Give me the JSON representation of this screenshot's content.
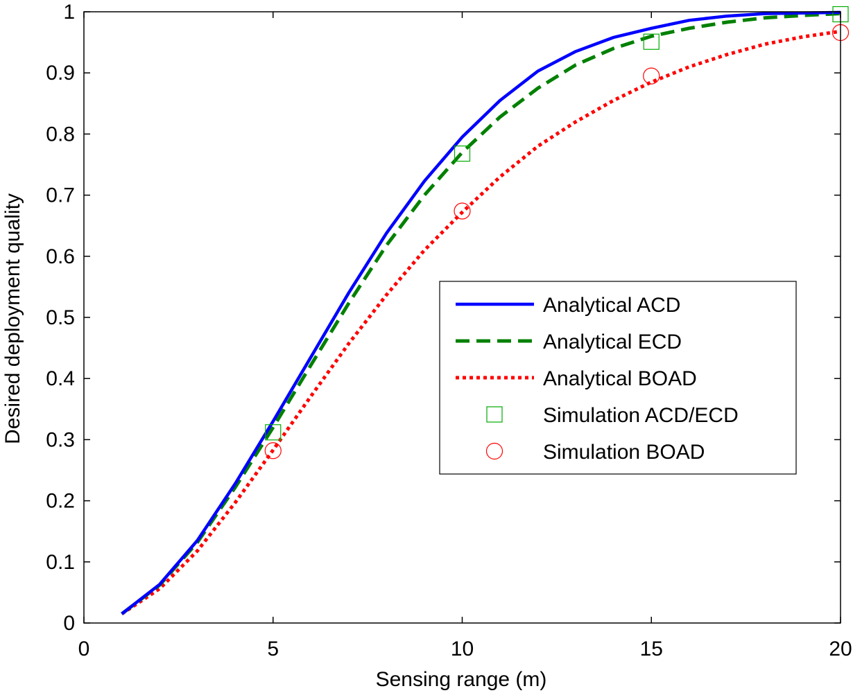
{
  "chart_data": {
    "type": "line",
    "title": "",
    "xlabel": "Sensing range (m)",
    "ylabel": "Desired deployment quality",
    "xlim": [
      0,
      20
    ],
    "ylim": [
      0,
      1
    ],
    "xticks": [
      0,
      5,
      10,
      15,
      20
    ],
    "yticks": [
      0,
      0.1,
      0.2,
      0.3,
      0.4,
      0.5,
      0.6,
      0.7,
      0.8,
      0.9,
      1
    ],
    "xtick_labels": [
      "0",
      "5",
      "10",
      "15",
      "20"
    ],
    "ytick_labels": [
      "0",
      "0.1",
      "0.2",
      "0.3",
      "0.4",
      "0.5",
      "0.6",
      "0.7",
      "0.8",
      "0.9",
      "1"
    ],
    "grid": false,
    "legend_position": "center-right",
    "series": [
      {
        "name": "Analytical ACD",
        "style": "solid",
        "color": "#0000ff",
        "x": [
          1,
          2,
          3,
          4,
          5,
          6,
          7,
          8,
          9,
          10,
          11,
          12,
          13,
          14,
          15,
          16,
          17,
          18,
          19,
          20
        ],
        "y": [
          0.015,
          0.063,
          0.135,
          0.228,
          0.33,
          0.435,
          0.54,
          0.638,
          0.723,
          0.795,
          0.855,
          0.903,
          0.935,
          0.958,
          0.973,
          0.986,
          0.993,
          0.997,
          0.998,
          0.999
        ]
      },
      {
        "name": "Analytical ECD",
        "style": "dashed",
        "color": "#008000",
        "x": [
          1,
          2,
          3,
          4,
          5,
          6,
          7,
          8,
          9,
          10,
          11,
          12,
          13,
          14,
          15,
          16,
          17,
          18,
          19,
          20
        ],
        "y": [
          0.015,
          0.062,
          0.132,
          0.222,
          0.32,
          0.422,
          0.523,
          0.618,
          0.7,
          0.77,
          0.828,
          0.875,
          0.913,
          0.94,
          0.96,
          0.973,
          0.983,
          0.99,
          0.994,
          0.997
        ]
      },
      {
        "name": "Analytical BOAD",
        "style": "dotted",
        "color": "#ff0000",
        "x": [
          1,
          2,
          3,
          4,
          5,
          6,
          7,
          8,
          9,
          10,
          11,
          12,
          13,
          14,
          15,
          16,
          17,
          18,
          19,
          20
        ],
        "y": [
          0.015,
          0.056,
          0.118,
          0.197,
          0.283,
          0.371,
          0.457,
          0.537,
          0.61,
          0.672,
          0.73,
          0.78,
          0.82,
          0.855,
          0.885,
          0.91,
          0.93,
          0.947,
          0.959,
          0.968
        ]
      },
      {
        "name": "Simulation ACD/ECD",
        "style": "marker-square",
        "color": "#00aa00",
        "x": [
          5,
          10,
          15,
          20
        ],
        "y": [
          0.312,
          0.768,
          0.951,
          0.996
        ]
      },
      {
        "name": "Simulation BOAD",
        "style": "marker-circle",
        "color": "#ff0000",
        "x": [
          5,
          10,
          15,
          20
        ],
        "y": [
          0.282,
          0.674,
          0.895,
          0.966
        ]
      }
    ]
  }
}
